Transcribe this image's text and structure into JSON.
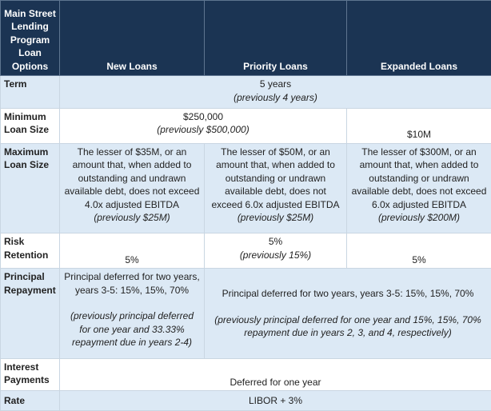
{
  "header": {
    "corner": [
      "Main Street",
      "Lending",
      "Program",
      "Loan",
      "Options"
    ],
    "columns": [
      "New Loans",
      "Priority Loans",
      "Expanded Loans"
    ]
  },
  "rows": {
    "term": {
      "label": "Term",
      "value": "5 years",
      "previous": "(previously 4 years)"
    },
    "minimum": {
      "label": [
        "Minimum",
        "Loan Size"
      ],
      "new_priority_value": "$250,000",
      "new_priority_previous": "(previously $500,000)",
      "expanded_value": "$10M"
    },
    "maximum": {
      "label": [
        "Maximum",
        "Loan Size"
      ],
      "new_lines": [
        "The lesser of $35M, or an",
        "amount that, when added to",
        "outstanding and undrawn",
        "available debt, does not exceed",
        "4.0x adjusted EBITDA"
      ],
      "new_previous": "(previously $25M)",
      "priority_lines": [
        "The lesser of $50M, or an",
        "amount that, when added to",
        "outstanding or undrawn",
        "available debt, does not",
        "exceed 6.0x adjusted EBITDA"
      ],
      "priority_previous": "(previously $25M)",
      "expanded_lines": [
        "The lesser of $300M, or an",
        "amount that, when added to",
        "outstanding or undrawn",
        "available debt, does not exceed",
        "6.0x adjusted EBITDA"
      ],
      "expanded_previous": "(previously $200M)"
    },
    "risk": {
      "label": [
        "Risk",
        "Retention"
      ],
      "new_value": "5%",
      "priority_value": "5%",
      "priority_previous": "(previously 15%)",
      "expanded_value": "5%"
    },
    "principal": {
      "label": [
        "Principal",
        "Repayment"
      ],
      "new_lines": [
        "Principal deferred for two years,",
        "years 3-5: 15%, 15%, 70%"
      ],
      "new_previous": [
        "(previously principal deferred",
        "for one year and 33.33%",
        "repayment due in years 2-4)"
      ],
      "priority_expanded_value": "Principal deferred for two years, years 3-5: 15%, 15%, 70%",
      "priority_expanded_previous": [
        "(previously principal deferred for one year and 15%, 15%, 70%",
        "repayment due in years 2, 3, and 4, respectively)"
      ]
    },
    "interest": {
      "label": [
        "Interest",
        "Payments"
      ],
      "value": "Deferred for one year"
    },
    "rate": {
      "label": "Rate",
      "value": "LIBOR + 3%"
    }
  }
}
